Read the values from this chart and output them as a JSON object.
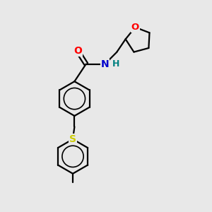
{
  "background_color": "#e8e8e8",
  "bond_color": "#000000",
  "bond_width": 1.6,
  "atom_colors": {
    "O": "#ff0000",
    "N": "#0000cc",
    "S": "#cccc00",
    "H": "#008080",
    "C": "#000000"
  },
  "font_size": 9,
  "figsize": [
    3.0,
    3.0
  ],
  "dpi": 100
}
